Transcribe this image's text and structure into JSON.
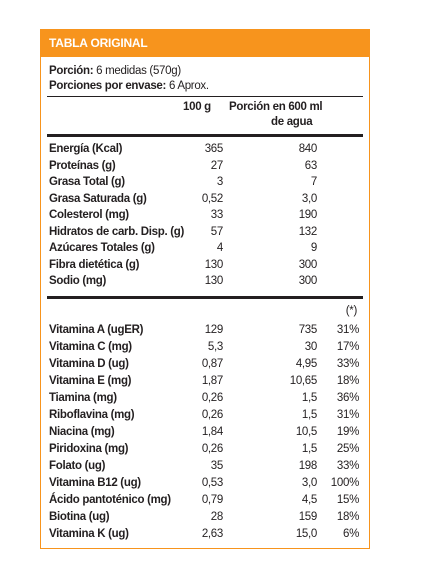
{
  "title": "TABLA ORIGINAL",
  "portion": {
    "label": "Porción:",
    "value": "6 medidas (570g)"
  },
  "per_container": {
    "label": "Porciones por envase:",
    "value": "6 Aprox."
  },
  "headers": {
    "col100": "100 g",
    "colportion_line1": "Porción en 600 ml",
    "colportion_line2": "de agua"
  },
  "macros": [
    {
      "label": "Energía (Kcal)",
      "v100": "365",
      "vpor": "840"
    },
    {
      "label": "Proteínas (g)",
      "v100": "27",
      "vpor": "63"
    },
    {
      "label": "Grasa Total (g)",
      "v100": "3",
      "vpor": "7"
    },
    {
      "label": "Grasa Saturada (g)",
      "v100": "0,52",
      "vpor": "3,0"
    },
    {
      "label": "Colesterol (mg)",
      "v100": "33",
      "vpor": "190"
    },
    {
      "label": "Hidratos de carb. Disp. (g)",
      "v100": "57",
      "vpor": "132"
    },
    {
      "label": "Azúcares Totales (g)",
      "v100": "4",
      "vpor": "9"
    },
    {
      "label": "Fibra dietética (g)",
      "v100": "130",
      "vpor": "300"
    },
    {
      "label": "Sodio (mg)",
      "v100": "130",
      "vpor": "300"
    }
  ],
  "note": "(*)",
  "vitamins": [
    {
      "label": "Vitamina A (ugER)",
      "v100": "129",
      "vpor": "735",
      "pct": "31%"
    },
    {
      "label": "Vitamina C (mg)",
      "v100": "5,3",
      "vpor": "30",
      "pct": "17%"
    },
    {
      "label": "Vitamina D (ug)",
      "v100": "0,87",
      "vpor": "4,95",
      "pct": "33%"
    },
    {
      "label": "Vitamina E (mg)",
      "v100": "1,87",
      "vpor": "10,65",
      "pct": "18%"
    },
    {
      "label": "Tiamina (mg)",
      "v100": "0,26",
      "vpor": "1,5",
      "pct": "36%"
    },
    {
      "label": "Riboflavina (mg)",
      "v100": "0,26",
      "vpor": "1,5",
      "pct": "31%"
    },
    {
      "label": "Niacina (mg)",
      "v100": "1,84",
      "vpor": "10,5",
      "pct": "19%"
    },
    {
      "label": "Piridoxina (mg)",
      "v100": "0,26",
      "vpor": "1,5",
      "pct": "25%"
    },
    {
      "label": "Folato (ug)",
      "v100": "35",
      "vpor": "198",
      "pct": "33%"
    },
    {
      "label": "Vitamina B12 (ug)",
      "v100": "0,53",
      "vpor": "3,0",
      "pct": "100%"
    },
    {
      "label": "Ácido pantoténico (mg)",
      "v100": "0,79",
      "vpor": "4,5",
      "pct": "15%"
    },
    {
      "label": "Biotina (ug)",
      "v100": "28",
      "vpor": "159",
      "pct": "18%"
    },
    {
      "label": "Vitamina K (ug)",
      "v100": "2,63",
      "vpor": "15,0",
      "pct": "6%"
    }
  ],
  "colors": {
    "accent": "#f7941d",
    "text": "#231f20"
  }
}
